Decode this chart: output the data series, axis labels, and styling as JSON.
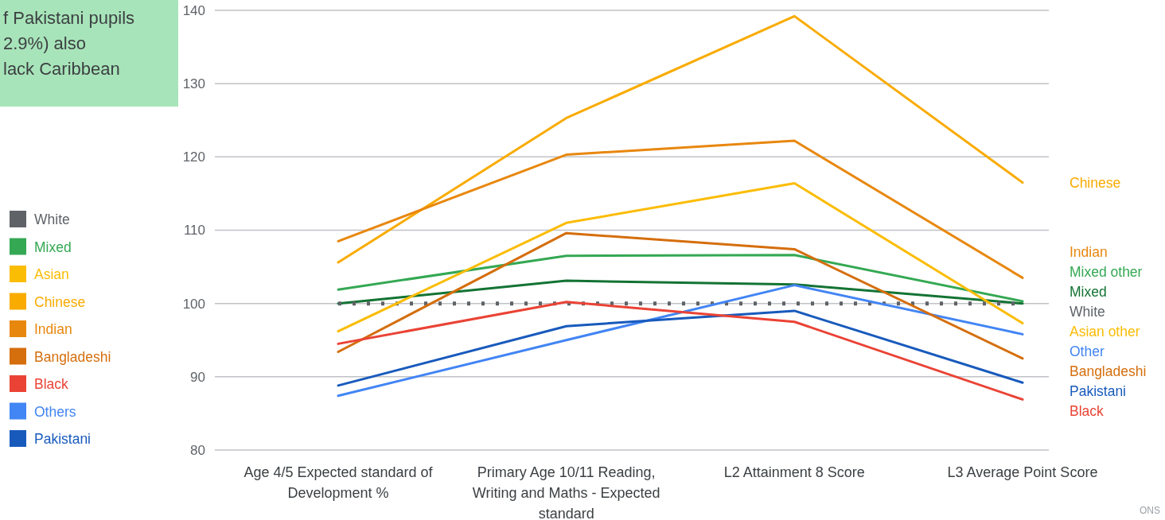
{
  "chart_data": {
    "type": "line",
    "categories": [
      "Age 4/5 Expected standard of Development %",
      "Primary Age 10/11 Reading, Writing and Maths - Expected standard",
      "L2 Attainment 8 Score",
      "L3 Average Point Score"
    ],
    "series": [
      {
        "name": "Chinese",
        "color": "#f9ab00",
        "values": [
          105.6,
          125.3,
          139.2,
          116.5
        ]
      },
      {
        "name": "Indian",
        "color": "#e8870e",
        "values": [
          108.5,
          120.3,
          122.2,
          103.5
        ]
      },
      {
        "name": "Mixed other",
        "color": "#34a853",
        "values": [
          101.9,
          106.5,
          106.6,
          100.3
        ]
      },
      {
        "name": "Mixed",
        "color": "#137333",
        "values": [
          100.0,
          103.1,
          102.6,
          100.0
        ]
      },
      {
        "name": "White",
        "color": "#5f6368",
        "line_style": "dotted",
        "values": [
          100,
          100,
          100,
          100
        ]
      },
      {
        "name": "Asian other",
        "color": "#fbbc04",
        "values": [
          96.2,
          111.0,
          116.4,
          97.3
        ]
      },
      {
        "name": "Other",
        "color": "#4285f4",
        "values": [
          87.4,
          95.0,
          102.5,
          95.8
        ]
      },
      {
        "name": "Bangladeshi",
        "color": "#d56e0c",
        "values": [
          93.4,
          109.6,
          107.4,
          92.5
        ]
      },
      {
        "name": "Pakistani",
        "color": "#185abc",
        "values": [
          88.8,
          96.9,
          99.0,
          89.2
        ]
      },
      {
        "name": "Black",
        "color": "#ea4335",
        "values": [
          94.5,
          100.2,
          97.5,
          86.9
        ]
      }
    ],
    "ylim": [
      80,
      140
    ],
    "yticks": [
      80,
      90,
      100,
      110,
      120,
      130,
      140
    ],
    "grid": "y",
    "line_style": "solid",
    "marker": "none",
    "annotations": [
      "f Pakistani pupils\n2.9%) also\nlack Caribbean",
      "White",
      "Mixed",
      "Asian",
      "Chinese",
      "Indian",
      "Bangladeshi",
      "Black",
      "Others",
      "Pakistani",
      "ONS"
    ]
  }
}
